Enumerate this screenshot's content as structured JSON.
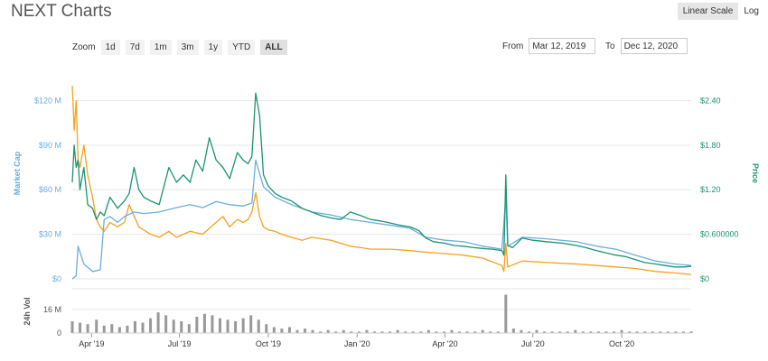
{
  "header": {
    "title": "NEXT Charts",
    "scale_options": [
      "Linear Scale",
      "Log"
    ],
    "active_scale": "Linear Scale"
  },
  "zoom": {
    "label": "Zoom",
    "buttons": [
      "1d",
      "7d",
      "1m",
      "3m",
      "1y",
      "YTD",
      "ALL"
    ],
    "active": "ALL"
  },
  "date_range": {
    "from_label": "From",
    "from_value": "Mar 12, 2019",
    "to_label": "To",
    "to_value": "Dec 12, 2020"
  },
  "colors": {
    "market_cap": "#6aaee0",
    "price": "#1b9472",
    "volume_orange": "#f5a11c",
    "volume_bars": "#999999",
    "grid": "#e6e6e6"
  },
  "chart_data": {
    "type": "line",
    "x_type": "date",
    "xlim": [
      "2019-03-12",
      "2020-12-12"
    ],
    "x_tick_labels": [
      "Apr '19",
      "Jul '19",
      "Oct '19",
      "Jan '20",
      "Apr '20",
      "Jul '20",
      "Oct '20"
    ],
    "x_ticks": [
      "2019-04-01",
      "2019-07-01",
      "2019-10-01",
      "2020-01-01",
      "2020-04-01",
      "2020-07-01",
      "2020-10-01"
    ],
    "left_axis": {
      "label": "Market Cap",
      "ticks": [
        "$0",
        "$30 M",
        "$60 M",
        "$90 M",
        "$120 M"
      ],
      "tick_values": [
        0,
        30,
        60,
        90,
        120
      ],
      "ylim": [
        0,
        130
      ]
    },
    "right_axis": {
      "label": "Price",
      "ticks": [
        "$0",
        "$0.600000",
        "$1.20",
        "$1.80",
        "$2.40"
      ],
      "tick_values": [
        0,
        0.6,
        1.2,
        1.8,
        2.4
      ],
      "ylim": [
        0,
        2.6
      ]
    },
    "volume_axis": {
      "label": "24h Vol",
      "ticks": [
        "0",
        "16 M"
      ],
      "tick_values": [
        0,
        16
      ],
      "ylim": [
        0,
        30
      ]
    },
    "grid": true,
    "series": [
      {
        "key": "price",
        "axis": "right",
        "x": [
          "2019-03-12",
          "2019-03-14",
          "2019-03-16",
          "2019-03-18",
          "2019-03-20",
          "2019-03-24",
          "2019-03-28",
          "2019-04-02",
          "2019-04-06",
          "2019-04-10",
          "2019-04-14",
          "2019-04-20",
          "2019-04-28",
          "2019-05-05",
          "2019-05-10",
          "2019-05-15",
          "2019-05-20",
          "2019-05-25",
          "2019-06-01",
          "2019-06-10",
          "2019-06-20",
          "2019-06-28",
          "2019-07-05",
          "2019-07-12",
          "2019-07-18",
          "2019-07-25",
          "2019-08-01",
          "2019-08-08",
          "2019-08-15",
          "2019-08-22",
          "2019-08-30",
          "2019-09-05",
          "2019-09-10",
          "2019-09-14",
          "2019-09-18",
          "2019-09-22",
          "2019-09-26",
          "2019-10-01",
          "2019-10-08",
          "2019-10-15",
          "2019-10-25",
          "2019-11-05",
          "2019-11-15",
          "2019-11-25",
          "2019-12-05",
          "2019-12-15",
          "2019-12-25",
          "2020-01-05",
          "2020-01-15",
          "2020-01-25",
          "2020-02-05",
          "2020-02-15",
          "2020-02-25",
          "2020-03-05",
          "2020-03-12",
          "2020-03-20",
          "2020-04-01",
          "2020-04-10",
          "2020-04-20",
          "2020-05-01",
          "2020-05-10",
          "2020-05-20",
          "2020-05-30",
          "2020-06-01",
          "2020-06-03",
          "2020-06-05",
          "2020-06-10",
          "2020-06-20",
          "2020-07-01",
          "2020-07-15",
          "2020-08-01",
          "2020-08-15",
          "2020-08-25",
          "2020-09-05",
          "2020-09-15",
          "2020-09-25",
          "2020-10-05",
          "2020-10-15",
          "2020-10-25",
          "2020-11-05",
          "2020-11-15",
          "2020-11-25",
          "2020-12-05",
          "2020-12-12"
        ],
        "values": [
          1.3,
          1.8,
          1.5,
          1.6,
          1.2,
          1.5,
          1.0,
          0.95,
          0.8,
          0.9,
          0.85,
          1.1,
          0.95,
          1.05,
          1.15,
          1.5,
          1.2,
          1.1,
          1.05,
          1.0,
          1.5,
          1.3,
          1.4,
          1.3,
          1.6,
          1.45,
          1.9,
          1.6,
          1.5,
          1.35,
          1.7,
          1.6,
          1.55,
          1.65,
          2.5,
          2.2,
          1.4,
          1.25,
          1.15,
          1.1,
          1.05,
          0.95,
          0.9,
          0.85,
          0.82,
          0.8,
          0.9,
          0.85,
          0.8,
          0.78,
          0.75,
          0.72,
          0.7,
          0.65,
          0.55,
          0.5,
          0.48,
          0.45,
          0.44,
          0.42,
          0.41,
          0.4,
          0.38,
          0.32,
          1.4,
          0.45,
          0.42,
          0.55,
          0.52,
          0.5,
          0.48,
          0.45,
          0.42,
          0.38,
          0.35,
          0.32,
          0.3,
          0.26,
          0.22,
          0.2,
          0.18,
          0.16,
          0.16,
          0.17
        ]
      },
      {
        "key": "market_cap",
        "axis": "left",
        "x": [
          "2019-03-12",
          "2019-03-16",
          "2019-03-18",
          "2019-03-24",
          "2019-04-02",
          "2019-04-10",
          "2019-04-14",
          "2019-04-20",
          "2019-04-28",
          "2019-05-05",
          "2019-05-15",
          "2019-05-25",
          "2019-06-10",
          "2019-06-28",
          "2019-07-12",
          "2019-07-25",
          "2019-08-08",
          "2019-08-22",
          "2019-09-05",
          "2019-09-14",
          "2019-09-18",
          "2019-09-26",
          "2019-10-08",
          "2019-10-25",
          "2019-11-15",
          "2019-12-05",
          "2019-12-25",
          "2020-01-15",
          "2020-02-05",
          "2020-02-25",
          "2020-03-12",
          "2020-04-01",
          "2020-04-20",
          "2020-05-10",
          "2020-05-30",
          "2020-06-03",
          "2020-06-05",
          "2020-06-20",
          "2020-07-15",
          "2020-08-15",
          "2020-09-05",
          "2020-09-25",
          "2020-10-15",
          "2020-11-05",
          "2020-11-25",
          "2020-12-12"
        ],
        "values": [
          0,
          2,
          22,
          10,
          5,
          6,
          40,
          42,
          38,
          42,
          45,
          44,
          45,
          48,
          50,
          48,
          52,
          50,
          49,
          51,
          80,
          62,
          55,
          50,
          45,
          43,
          40,
          38,
          36,
          34,
          28,
          26,
          25,
          22,
          20,
          55,
          22,
          28,
          27,
          25,
          22,
          20,
          16,
          12,
          10,
          9
        ]
      },
      {
        "key": "volume_orange",
        "axis": "left",
        "x": [
          "2019-03-12",
          "2019-03-14",
          "2019-03-16",
          "2019-03-18",
          "2019-03-20",
          "2019-03-24",
          "2019-03-28",
          "2019-04-02",
          "2019-04-06",
          "2019-04-10",
          "2019-04-14",
          "2019-04-20",
          "2019-04-28",
          "2019-05-05",
          "2019-05-10",
          "2019-05-20",
          "2019-06-01",
          "2019-06-10",
          "2019-06-20",
          "2019-06-28",
          "2019-07-05",
          "2019-07-12",
          "2019-07-25",
          "2019-08-08",
          "2019-08-15",
          "2019-08-22",
          "2019-08-30",
          "2019-09-05",
          "2019-09-10",
          "2019-09-14",
          "2019-09-18",
          "2019-09-22",
          "2019-09-26",
          "2019-10-01",
          "2019-10-08",
          "2019-10-15",
          "2019-10-25",
          "2019-11-05",
          "2019-11-15",
          "2019-11-25",
          "2019-12-05",
          "2019-12-15",
          "2019-12-25",
          "2020-01-05",
          "2020-01-15",
          "2020-02-05",
          "2020-02-25",
          "2020-03-12",
          "2020-04-01",
          "2020-04-20",
          "2020-05-10",
          "2020-05-30",
          "2020-06-01",
          "2020-06-03",
          "2020-06-05",
          "2020-06-20",
          "2020-07-15",
          "2020-08-15",
          "2020-09-05",
          "2020-09-25",
          "2020-10-15",
          "2020-11-05",
          "2020-11-25",
          "2020-12-12"
        ],
        "values": [
          130,
          100,
          120,
          80,
          75,
          90,
          70,
          55,
          40,
          35,
          32,
          38,
          35,
          38,
          50,
          35,
          30,
          28,
          32,
          28,
          30,
          32,
          30,
          38,
          42,
          35,
          40,
          38,
          40,
          45,
          58,
          42,
          35,
          33,
          32,
          30,
          28,
          26,
          28,
          27,
          26,
          24,
          22,
          21,
          20,
          20,
          19,
          18,
          17,
          16,
          14,
          9,
          5,
          24,
          8,
          12,
          11,
          10,
          9,
          8,
          7,
          5,
          4,
          3
        ]
      }
    ],
    "volume": {
      "x": [
        "2019-03-12",
        "2019-03-20",
        "2019-03-28",
        "2019-04-06",
        "2019-04-14",
        "2019-04-22",
        "2019-04-30",
        "2019-05-08",
        "2019-05-16",
        "2019-05-24",
        "2019-06-01",
        "2019-06-09",
        "2019-06-17",
        "2019-06-25",
        "2019-07-03",
        "2019-07-11",
        "2019-07-19",
        "2019-07-27",
        "2019-08-04",
        "2019-08-12",
        "2019-08-20",
        "2019-08-28",
        "2019-09-05",
        "2019-09-13",
        "2019-09-21",
        "2019-09-29",
        "2019-10-07",
        "2019-10-15",
        "2019-10-23",
        "2019-10-31",
        "2019-11-08",
        "2019-11-16",
        "2019-11-24",
        "2019-12-02",
        "2019-12-10",
        "2019-12-18",
        "2019-12-26",
        "2020-01-03",
        "2020-01-11",
        "2020-01-19",
        "2020-01-27",
        "2020-02-04",
        "2020-02-12",
        "2020-02-20",
        "2020-02-28",
        "2020-03-07",
        "2020-03-15",
        "2020-03-23",
        "2020-03-31",
        "2020-04-08",
        "2020-04-16",
        "2020-04-24",
        "2020-05-02",
        "2020-05-10",
        "2020-05-18",
        "2020-05-26",
        "2020-06-03",
        "2020-06-11",
        "2020-06-19",
        "2020-06-27",
        "2020-07-05",
        "2020-07-13",
        "2020-07-21",
        "2020-07-29",
        "2020-08-06",
        "2020-08-14",
        "2020-08-22",
        "2020-08-30",
        "2020-09-07",
        "2020-09-15",
        "2020-09-23",
        "2020-10-01",
        "2020-10-09",
        "2020-10-17",
        "2020-10-25",
        "2020-11-02",
        "2020-11-10",
        "2020-11-18",
        "2020-11-26",
        "2020-12-04",
        "2020-12-12"
      ],
      "values": [
        8,
        7,
        6,
        9,
        5,
        6,
        4,
        5,
        8,
        7,
        10,
        14,
        12,
        9,
        8,
        6,
        11,
        13,
        12,
        10,
        9,
        8,
        10,
        12,
        9,
        6,
        4,
        3,
        4,
        2,
        3,
        2,
        1,
        2,
        1,
        2,
        1,
        1,
        2,
        1,
        1,
        1,
        2,
        1,
        1,
        1,
        2,
        1,
        1,
        2,
        1,
        1,
        1,
        2,
        1,
        1,
        26,
        3,
        2,
        1,
        2,
        1,
        1,
        1,
        1,
        2,
        1,
        1,
        1,
        1,
        1,
        2,
        1,
        1,
        1,
        1,
        1,
        1,
        1,
        1,
        1
      ]
    }
  }
}
